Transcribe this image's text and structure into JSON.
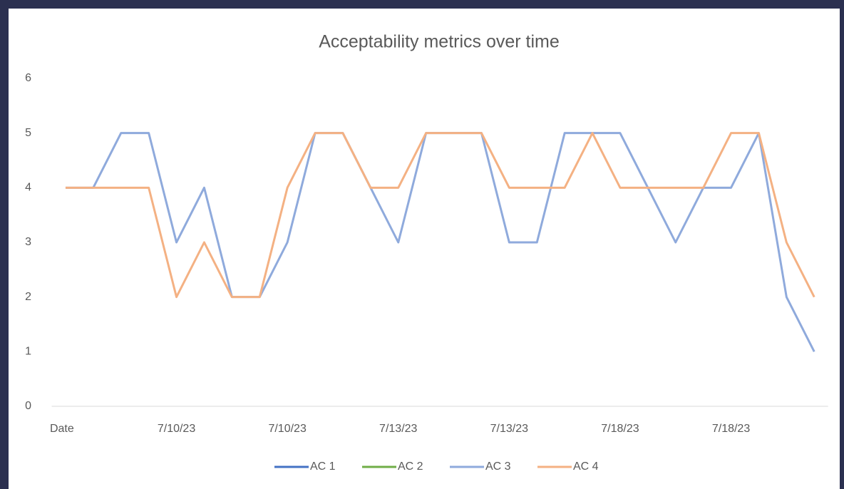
{
  "chart_data": {
    "type": "line",
    "title": "Acceptability metrics over time",
    "categories": [
      "Date",
      null,
      null,
      null,
      "7/10/23",
      null,
      null,
      null,
      "7/10/23",
      null,
      null,
      null,
      "7/13/23",
      null,
      null,
      null,
      "7/13/23",
      null,
      null,
      null,
      "7/18/23",
      null,
      null,
      null,
      "7/18/23",
      null,
      null,
      null
    ],
    "series": [
      {
        "name": "AC 1",
        "color": "#4472c4",
        "values": [
          null,
          null,
          null,
          null,
          null,
          null,
          null,
          null,
          null,
          null,
          null,
          null,
          null,
          null,
          null,
          null,
          null,
          null,
          null,
          null,
          null,
          null,
          null,
          null,
          null,
          null,
          null,
          null
        ]
      },
      {
        "name": "AC 2",
        "color": "#70ad47",
        "values": [
          null,
          null,
          null,
          null,
          null,
          null,
          null,
          null,
          null,
          null,
          null,
          null,
          null,
          null,
          null,
          null,
          null,
          null,
          null,
          null,
          null,
          null,
          null,
          null,
          null,
          null,
          null,
          null
        ]
      },
      {
        "name": "AC 3",
        "color": "#8faadc",
        "values": [
          4,
          4,
          5,
          5,
          3,
          4,
          2,
          2,
          3,
          5,
          5,
          4,
          3,
          5,
          5,
          5,
          3,
          3,
          5,
          5,
          5,
          4,
          3,
          4,
          4,
          5,
          2,
          1
        ]
      },
      {
        "name": "AC 4",
        "color": "#f4b183",
        "values": [
          4,
          4,
          4,
          4,
          2,
          3,
          2,
          2,
          4,
          5,
          5,
          4,
          4,
          5,
          5,
          5,
          4,
          4,
          4,
          5,
          4,
          4,
          4,
          4,
          5,
          5,
          3,
          2
        ]
      }
    ],
    "ylim": [
      0,
      6
    ],
    "yticks": [
      0,
      1,
      2,
      3,
      4,
      5,
      6
    ],
    "grid": false,
    "legend": "bottom"
  }
}
